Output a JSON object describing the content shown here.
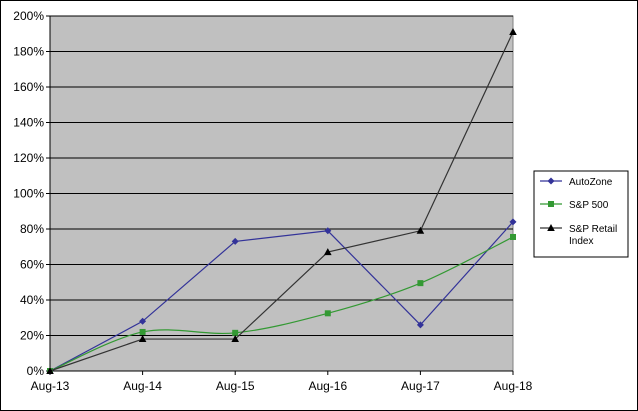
{
  "chart_data": {
    "type": "line",
    "categories": [
      "Aug-13",
      "Aug-14",
      "Aug-15",
      "Aug-16",
      "Aug-17",
      "Aug-18"
    ],
    "ylim": [
      0,
      200
    ],
    "y_ticks": [
      "0%",
      "20%",
      "40%",
      "60%",
      "80%",
      "100%",
      "120%",
      "140%",
      "160%",
      "180%",
      "200%"
    ],
    "grid": true,
    "legend_position": "right",
    "plot_background": "#c0c0c0",
    "series": [
      {
        "name": "AutoZone",
        "color": "#333399",
        "marker": "diamond",
        "smooth": false,
        "values": [
          0,
          28,
          73,
          79,
          26,
          84
        ]
      },
      {
        "name": "S&P 500",
        "color": "#339933",
        "marker": "square",
        "smooth": true,
        "values": [
          0,
          22,
          21.5,
          32.5,
          49.5,
          75.5
        ]
      },
      {
        "name": "S&P Retail Index",
        "color": "#333333",
        "marker": "triangle",
        "smooth": false,
        "values": [
          0,
          18,
          18,
          67,
          79,
          191
        ]
      }
    ]
  }
}
